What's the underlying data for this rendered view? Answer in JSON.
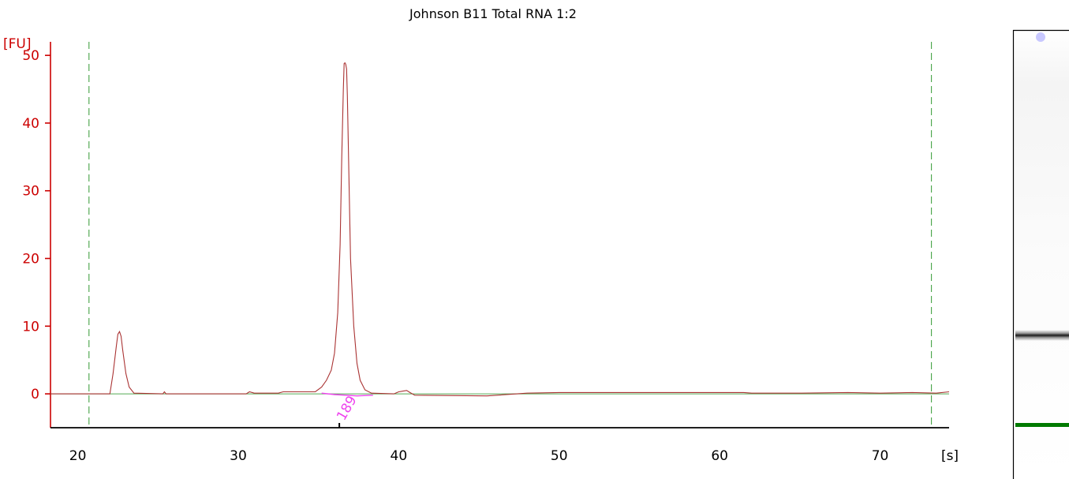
{
  "chart_data": {
    "type": "line",
    "title": "Johnson B11 Total RNA 1:2",
    "ylabel": "[FU]",
    "xlabel": "[s]",
    "xlim": [
      18.3,
      74.3
    ],
    "ylim": [
      -5,
      52
    ],
    "x_ticks": [
      20,
      30,
      40,
      50,
      60,
      70
    ],
    "y_ticks": [
      0,
      10,
      20,
      30,
      40,
      50
    ],
    "grid": false,
    "legend": "none",
    "colors": {
      "electropherogram": "#aa3333",
      "baseline": "#55aa55",
      "peak_baseline": "#ee44ee",
      "y_axis": "#cc0000",
      "x_axis": "#000000",
      "window_markers": "#339933"
    },
    "window_markers_x": [
      20.7,
      73.2
    ],
    "series": [
      {
        "values_x": [
          18.3,
          22.0,
          22.2,
          22.4,
          22.5,
          22.6,
          22.7,
          22.8,
          23.0,
          23.2,
          23.5,
          25.3,
          25.4,
          25.5,
          30.5,
          30.7,
          31.0,
          32.5,
          32.8,
          34.8,
          35.2,
          35.5,
          35.8,
          36.0,
          36.2,
          36.35,
          36.45,
          36.55,
          36.6,
          36.65,
          36.7,
          36.75,
          36.8,
          36.9,
          37.0,
          37.2,
          37.4,
          37.6,
          37.9,
          38.3,
          39.7,
          40.0,
          40.5,
          40.7,
          41.0,
          45.5,
          48.0,
          50.0,
          61.5,
          62.0,
          65.0,
          68.0,
          70.0,
          72.0,
          73.5,
          74.3
        ],
        "values_y": [
          0,
          0,
          3,
          7,
          8.8,
          9.2,
          8.5,
          6.5,
          3.0,
          1.0,
          0.1,
          0,
          0.3,
          0,
          0,
          0.3,
          0.1,
          0.1,
          0.3,
          0.3,
          1.0,
          2.0,
          3.5,
          6.0,
          12,
          22,
          35,
          45,
          48.8,
          48.9,
          48.7,
          48.0,
          44,
          32,
          20,
          10,
          4.5,
          2.0,
          0.6,
          0.1,
          0.0,
          0.3,
          0.5,
          0.2,
          -0.2,
          -0.3,
          0.1,
          0.2,
          0.2,
          0.1,
          0.1,
          0.2,
          0.1,
          0.2,
          0.1,
          0.3
        ]
      }
    ],
    "baseline_values_x": [
      18.3,
      74.3
    ],
    "baseline_values_y": [
      0,
      0
    ],
    "peak_baseline_x": [
      35.2,
      36.0,
      37.4,
      38.4
    ],
    "peak_baseline_y": [
      0.1,
      -0.1,
      -0.3,
      -0.2
    ],
    "peak_annotation": {
      "label": "189",
      "x": 36.3
    },
    "gel_lane": {
      "bands": [
        {
          "name": "sample-band",
          "color": "#222222"
        },
        {
          "name": "marker-band",
          "color": "#007a00"
        }
      ],
      "dot_color": "#c8c8ff"
    }
  }
}
